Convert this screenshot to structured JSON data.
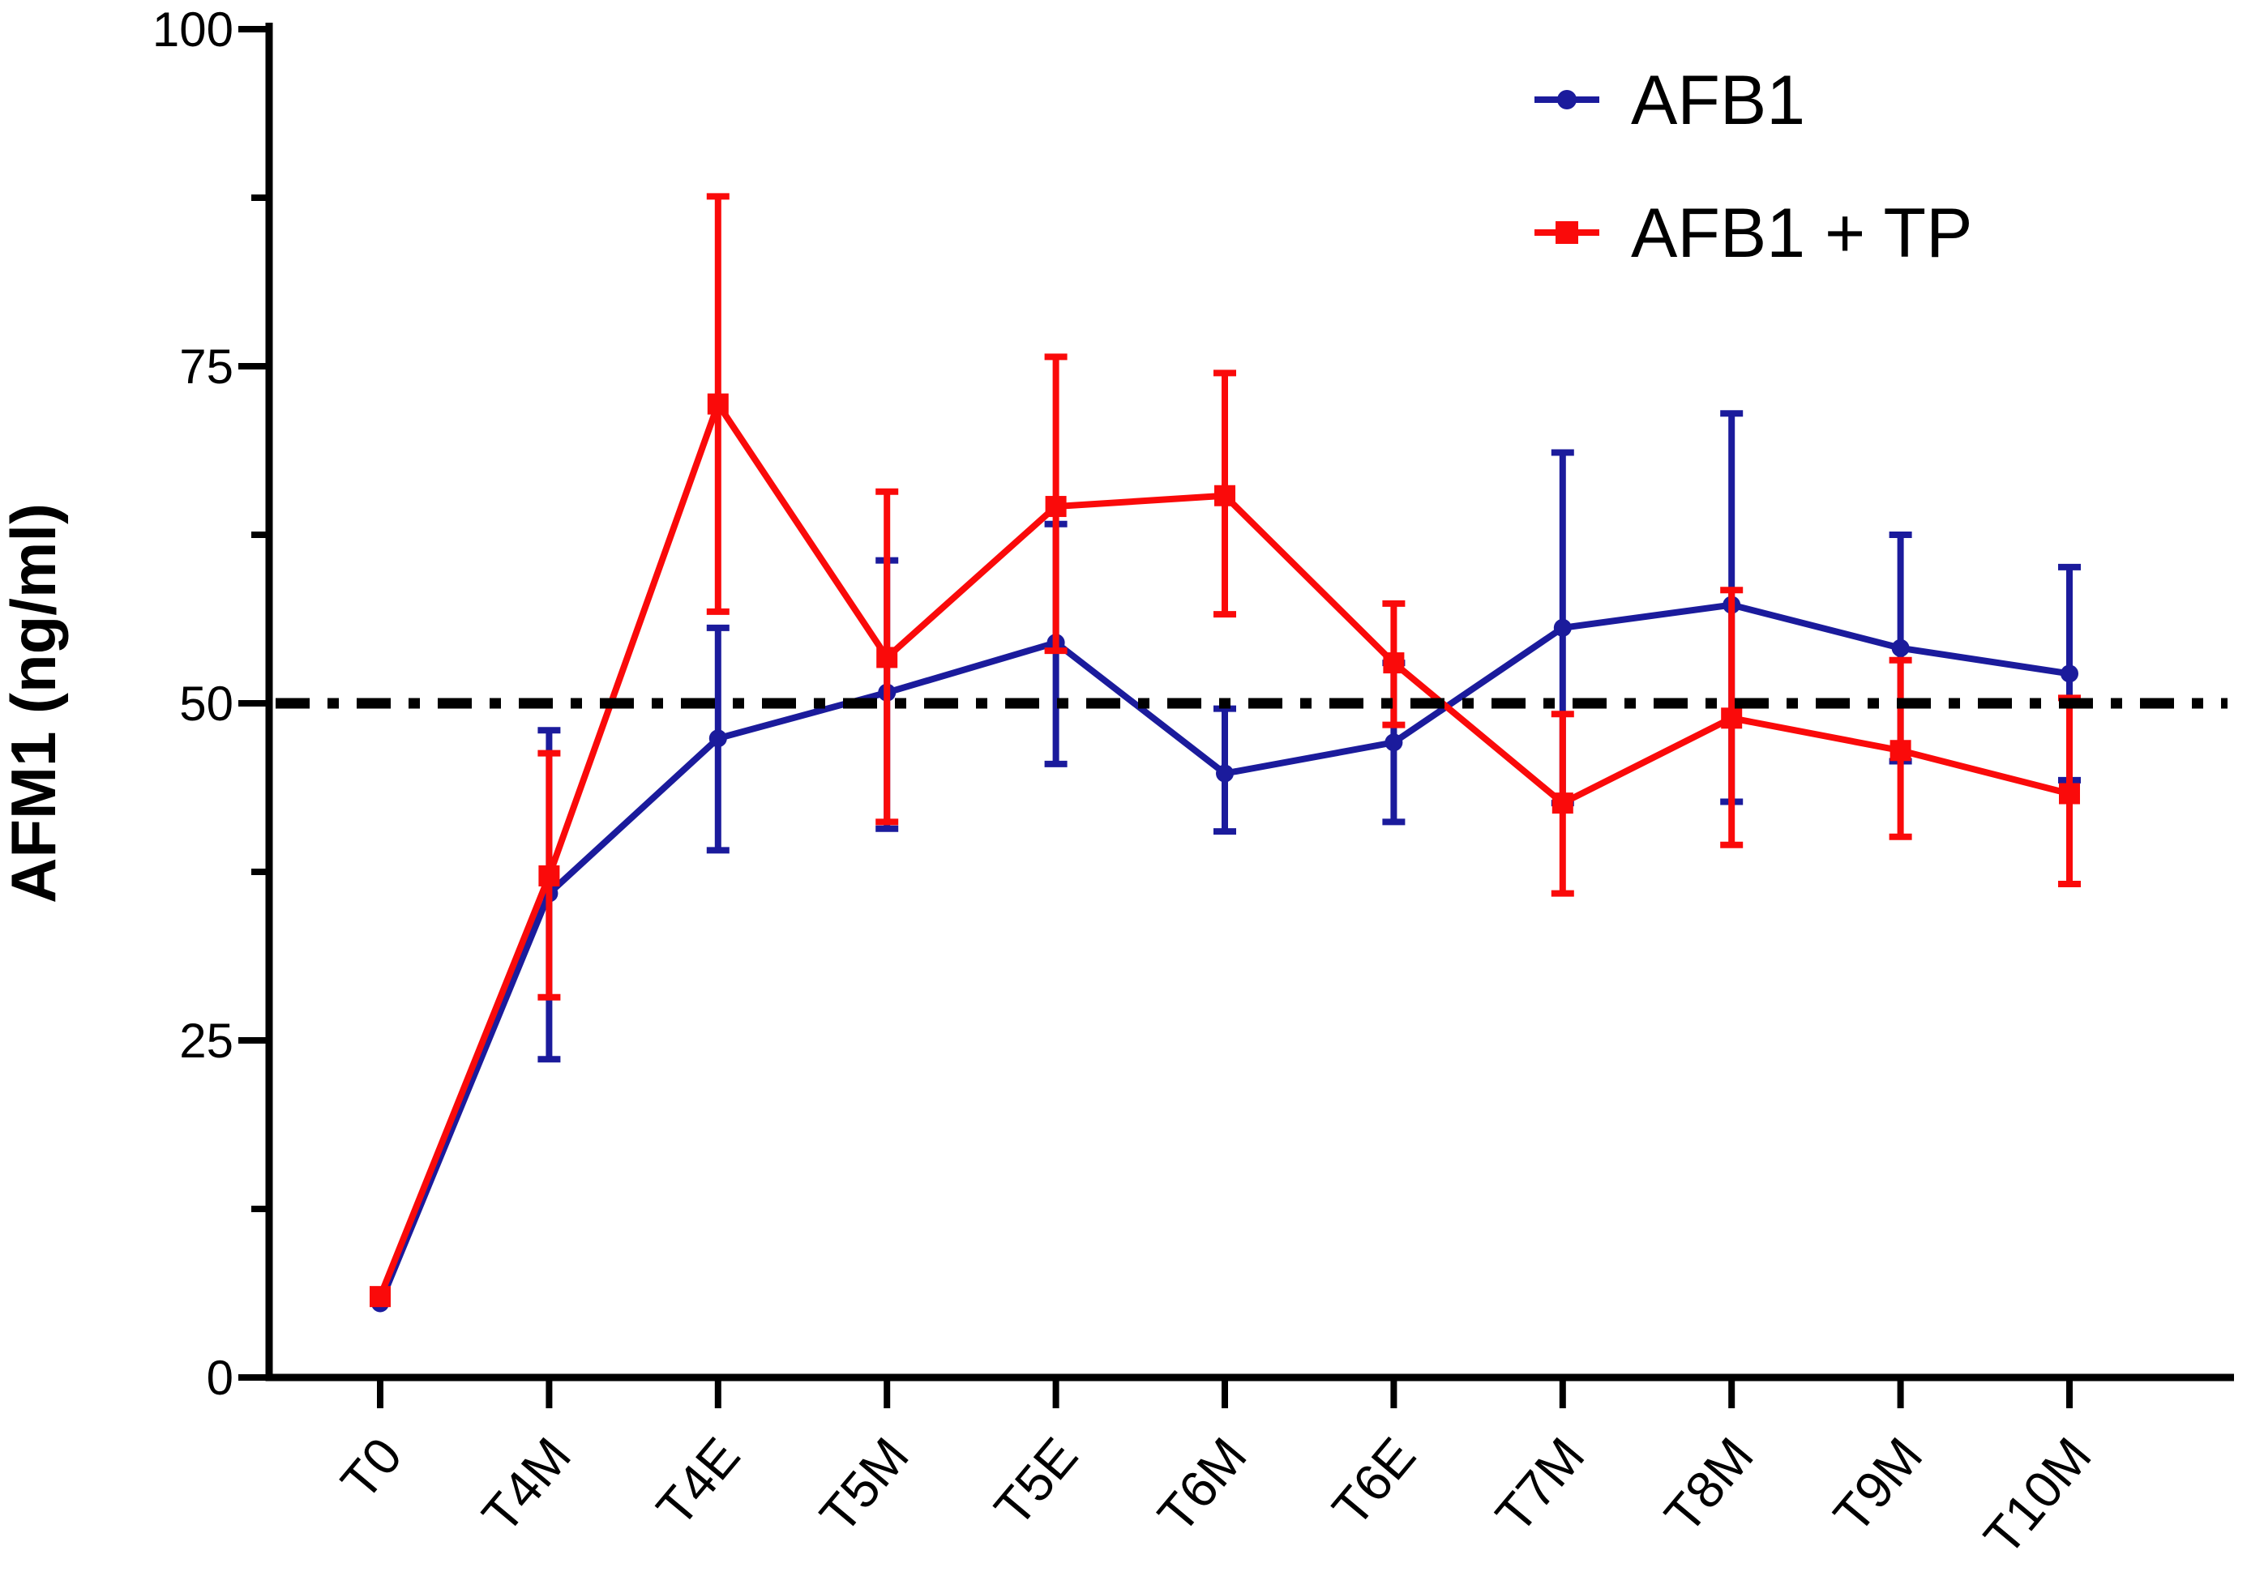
{
  "chart_data": {
    "type": "line",
    "title": "",
    "xlabel": "",
    "ylabel": "AFM1 (ng/ml)",
    "ylim": [
      0,
      100
    ],
    "y_ticks": [
      "0",
      "25",
      "50",
      "75",
      "100"
    ],
    "y_minor_ticks": [
      12.5,
      37.5,
      62.5,
      87.5
    ],
    "grid": "off",
    "legend_position": "top-right",
    "categories": [
      "T0",
      "T4M",
      "T4E",
      "T5M",
      "T5E",
      "T6M",
      "T6E",
      "T7M",
      "T8M",
      "T9M",
      "T10M"
    ],
    "reference_line": {
      "y": 50,
      "style": "dash-dot",
      "color": "#000000"
    },
    "series": [
      {
        "name": "AFB1",
        "marker": "circle",
        "color": "#1b1b9c",
        "values": [
          5.5,
          35.9,
          47.4,
          50.8,
          54.5,
          44.8,
          47.1,
          55.6,
          57.3,
          54.1,
          52.2
        ],
        "err_low": [
          5.5,
          23.6,
          39.1,
          40.7,
          45.5,
          40.5,
          41.2,
          42.6,
          42.7,
          45.7,
          44.3
        ],
        "err_high": [
          5.5,
          48.0,
          55.6,
          60.6,
          63.3,
          49.6,
          53.0,
          68.6,
          71.5,
          62.5,
          60.1
        ]
      },
      {
        "name": "AFB1 + TP",
        "marker": "square",
        "color": "#fa0a0a",
        "values": [
          6.0,
          37.2,
          72.2,
          53.4,
          64.6,
          65.4,
          53.0,
          42.6,
          48.9,
          46.5,
          43.3
        ],
        "err_low": [
          6.0,
          28.2,
          56.8,
          41.2,
          53.9,
          56.6,
          48.4,
          35.9,
          39.5,
          40.1,
          36.6
        ],
        "err_high": [
          6.0,
          46.3,
          87.6,
          65.7,
          75.7,
          74.5,
          57.4,
          49.2,
          58.4,
          53.2,
          50.4
        ]
      }
    ]
  }
}
